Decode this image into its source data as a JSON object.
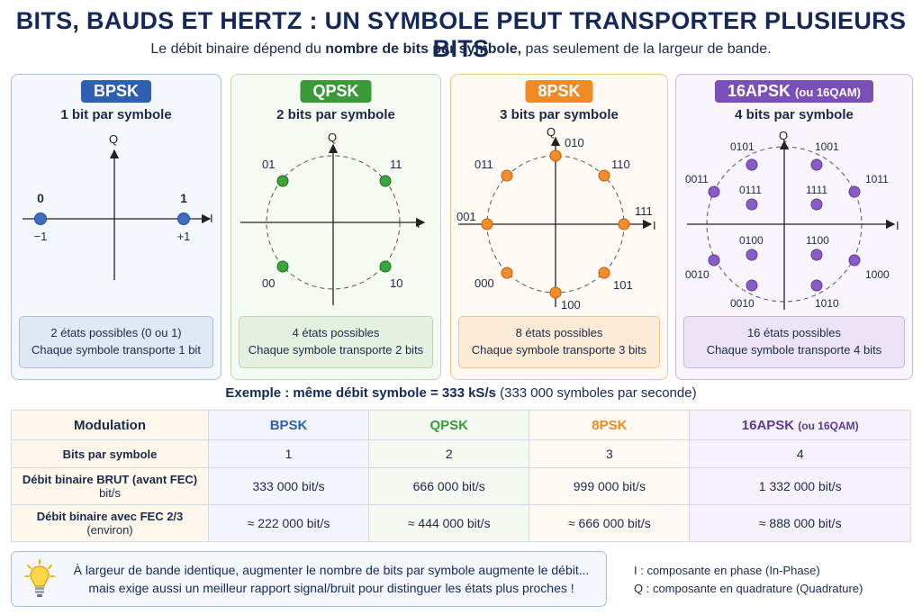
{
  "title": "BITS, BAUDS ET HERTZ : UN SYMBOLE PEUT TRANSPORTER PLUSIEURS BITS",
  "subtitle": {
    "pre": "Le débit binaire dépend du ",
    "bold": "nombre de bits par symbole,",
    "post": " pas seulement de la largeur de bande."
  },
  "panels": {
    "bpsk": {
      "badge": "BPSK",
      "bits_per_symbol": "1 bit par symbole",
      "axis_i": "I",
      "axis_q": "Q",
      "points": [
        {
          "bits": "0",
          "value": "−1"
        },
        {
          "bits": "1",
          "value": "+1"
        }
      ],
      "caption1": "2 états possibles (0 ou 1)",
      "caption2": "Chaque symbole transporte 1 bit",
      "color": "#2f5fb3"
    },
    "qpsk": {
      "badge": "QPSK",
      "bits_per_symbol": "2 bits par symbole",
      "axis_i": "I",
      "axis_q": "Q",
      "points": [
        "01",
        "11",
        "00",
        "10"
      ],
      "caption1": "4 états possibles",
      "caption2": "Chaque symbole transporte 2 bits",
      "color": "#3a9a3a"
    },
    "psk8": {
      "badge": "8PSK",
      "bits_per_symbol": "3 bits par symbole",
      "axis_i": "I",
      "axis_q": "Q",
      "points": [
        "010",
        "110",
        "111",
        "101",
        "100",
        "000",
        "001",
        "011"
      ],
      "caption1": "8 états possibles",
      "caption2": "Chaque symbole transporte 3 bits",
      "color": "#f08a24"
    },
    "apsk16": {
      "badge": "16APSK",
      "badge_small": "(ou 16QAM)",
      "bits_per_symbol": "4 bits par symbole",
      "axis_i": "I",
      "axis_q": "Q",
      "outer_points": [
        "0101",
        "1001",
        "1011",
        "1000",
        "1010",
        "0010",
        "0010",
        "0011"
      ],
      "inner_points": [
        "0111",
        "1111",
        "1100",
        "0100"
      ],
      "caption1": "16 états possibles",
      "caption2": "Chaque symbole transporte 4 bits",
      "color": "#7a4fb8"
    }
  },
  "example": {
    "bold": "Exemple : même débit symbole = 333 kS/s",
    "rest": " (333 000 symboles par seconde)"
  },
  "table": {
    "header": {
      "label": "Modulation",
      "bpsk": "BPSK",
      "qpsk": "QPSK",
      "psk8": "8PSK",
      "apsk16": "16APSK",
      "apsk16_small": "(ou 16QAM)"
    },
    "rows": [
      {
        "label": "Bits par symbole",
        "label2": "",
        "values": [
          "1",
          "2",
          "3",
          "4"
        ]
      },
      {
        "label": "Débit binaire BRUT (avant FEC)",
        "label2": "bit/s",
        "values": [
          "333 000 bit/s",
          "666 000 bit/s",
          "999 000 bit/s",
          "1 332 000 bit/s"
        ]
      },
      {
        "label": "Débit binaire avec FEC 2/3",
        "label2": "(environ)",
        "values": [
          "≈ 222 000 bit/s",
          "≈ 444 000 bit/s",
          "≈ 666 000 bit/s",
          "≈ 888 000 bit/s"
        ]
      }
    ]
  },
  "tip": {
    "line1": "À largeur de bande identique, augmenter le nombre de bits par symbole augmente le débit...",
    "line2": "mais exige aussi un meilleur rapport signal/bruit pour distinguer les états plus proches !",
    "icon": "lightbulb-icon"
  },
  "legend": {
    "i": "I :  composante en phase (In-Phase)",
    "q": "Q :  composante en quadrature (Quadrature)"
  }
}
